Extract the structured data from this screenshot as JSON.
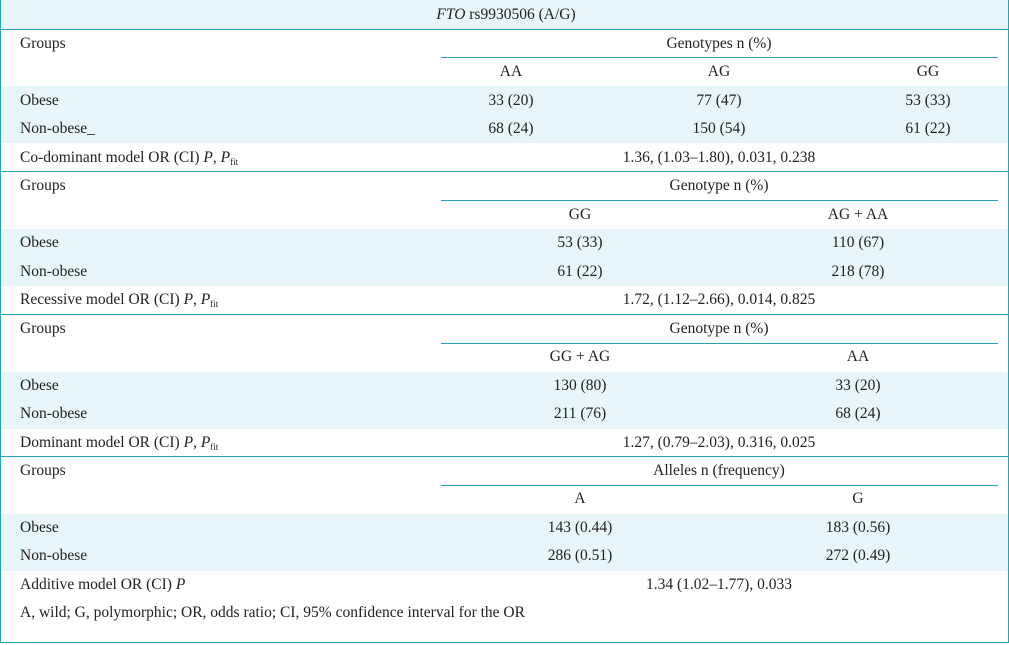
{
  "title": {
    "gene": "FTO",
    "rest": " rs9930506 (A/G)"
  },
  "sections": [
    {
      "groups_label": "Groups",
      "header": "Genotypes n (%)",
      "columns": [
        "AA",
        "AG",
        "GG"
      ],
      "rows": [
        {
          "label": "Obese",
          "values": [
            "33 (20)",
            "77 (47)",
            "53 (33)"
          ]
        },
        {
          "label": "Non-obese_",
          "values": [
            "68 (24)",
            "150 (54)",
            "61 (22)"
          ]
        }
      ],
      "model_label": "Co-dominant model OR (CI)",
      "model_value": "1.36, (1.03–1.80), 0.031, 0.238"
    },
    {
      "groups_label": "Groups",
      "header": "Genotype n (%)",
      "columns": [
        "GG",
        "AG + AA"
      ],
      "rows": [
        {
          "label": "Obese",
          "values": [
            "53 (33)",
            "110 (67)"
          ]
        },
        {
          "label": "Non-obese",
          "values": [
            "61 (22)",
            "218 (78)"
          ]
        }
      ],
      "model_label": "Recessive model OR (CI)",
      "model_value": "1.72, (1.12–2.66), 0.014, 0.825"
    },
    {
      "groups_label": "Groups",
      "header": "Genotype n (%)",
      "columns": [
        "GG + AG",
        "AA"
      ],
      "rows": [
        {
          "label": "Obese",
          "values": [
            "130 (80)",
            "33 (20)"
          ]
        },
        {
          "label": "Non-obese",
          "values": [
            "211 (76)",
            "68 (24)"
          ]
        }
      ],
      "model_label": "Dominant model OR (CI)",
      "model_value": "1.27, (0.79–2.03), 0.316, 0.025"
    },
    {
      "groups_label": "Groups",
      "header": "Alleles n (frequency)",
      "columns": [
        "A",
        "G"
      ],
      "rows": [
        {
          "label": "Obese",
          "values": [
            "143 (0.44)",
            "183 (0.56)"
          ]
        },
        {
          "label": "Non-obese",
          "values": [
            "286 (0.51)",
            "272 (0.49)"
          ]
        }
      ],
      "model_label": "Additive model OR (CI)",
      "model_value": "1.34 (1.02–1.77), 0.033"
    }
  ],
  "stat_symbols": {
    "p": "P",
    "p_fit_base": "P",
    "p_fit_sub": "fit",
    "comma": ","
  },
  "footnote": "A, wild; G, polymorphic; OR, odds ratio; CI, 95% confidence interval for the OR",
  "colors": {
    "rule": "#2aa3b0",
    "band": "#e8f6f9"
  }
}
